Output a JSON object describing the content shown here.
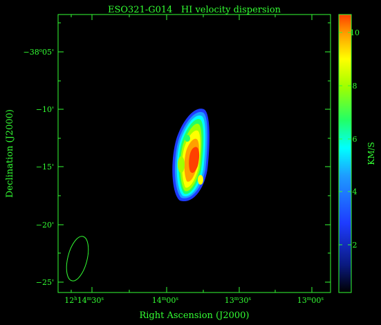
{
  "figure": {
    "title": "ESO321-G014   HI velocity dispersion",
    "xlabel": "Right Ascension (J2000)",
    "ylabel": "Declination (J2000)",
    "colorbar_label": "KM/S"
  },
  "x_ticks": [
    {
      "h": "12",
      "m": "14",
      "s": "30"
    },
    {
      "h": "",
      "m": "14",
      "s": "00"
    },
    {
      "h": "",
      "m": "13",
      "s": "30"
    },
    {
      "h": "",
      "m": "13",
      "s": "00"
    }
  ],
  "y_ticks": [
    {
      "deg": "−38",
      "arcmin": "05"
    },
    {
      "deg": "",
      "arcmin": "−10"
    },
    {
      "deg": "",
      "arcmin": "−15"
    },
    {
      "deg": "",
      "arcmin": "−20"
    },
    {
      "deg": "",
      "arcmin": "−25"
    }
  ],
  "chart_data": {
    "type": "heatmap",
    "title": "ESO321-G014   HI velocity dispersion",
    "xlabel": "Right Ascension (J2000)",
    "ylabel": "Declination (J2000)",
    "colorbar": {
      "label": "KM/S",
      "range": [
        0.5,
        10.7
      ],
      "ticks": [
        2,
        4,
        6,
        8,
        10
      ],
      "colormap": [
        "#000000",
        "#0a1a80",
        "#1e3cff",
        "#1e9cff",
        "#00ffff",
        "#22ff66",
        "#a0ff00",
        "#ffff00",
        "#ffa000",
        "#ff4000"
      ]
    },
    "map": {
      "background_value": 0,
      "source_extent_km_s": [
        3,
        10.5
      ],
      "peak_value_km_s": 10.5,
      "beam_shown": true
    },
    "colors": {
      "axes": "#33ff33",
      "background": "#000000"
    }
  }
}
